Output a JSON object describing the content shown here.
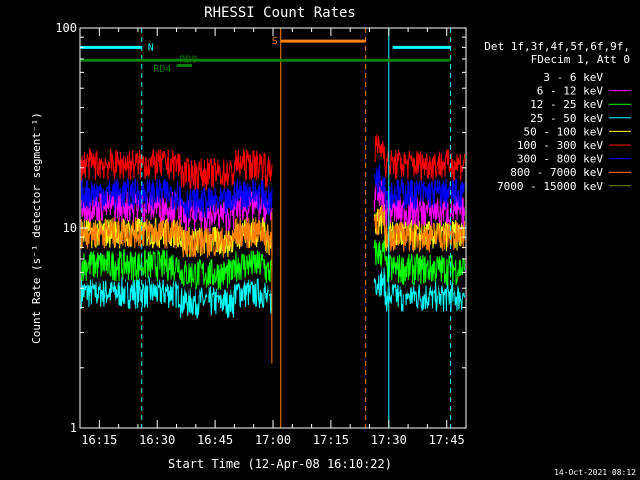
{
  "chart_data": {
    "type": "line",
    "title": "RHESSI Count Rates",
    "xlabel": "Start Time (12-Apr-08 16:10:22)",
    "ylabel": "Count Rate (s⁻¹ detector segment⁻¹)",
    "yscale": "log",
    "ylim": [
      1,
      100
    ],
    "xlim_min": [
      970,
      1070
    ],
    "x_unit": "minutes after 00:00",
    "x_ticks": [
      "16:15",
      "16:30",
      "16:45",
      "17:00",
      "17:15",
      "17:30",
      "17:45"
    ],
    "y_ticks": [
      "1",
      "10",
      "100"
    ],
    "legend_header": [
      "Det 1f,3f,4f,5f,6f,9f,",
      "FDecim 1, Att 0"
    ],
    "legend_position": "right",
    "timestamp": "14-Oct-2021 08:12",
    "data_gap": {
      "start": "17:00",
      "end": "17:26"
    },
    "series": [
      {
        "name": "3 - 6 keV",
        "color": "#000000",
        "pre_level": 6.2,
        "post_level": 5.6
      },
      {
        "name": "6 - 12 keV",
        "color": "#ff00ff",
        "pre_level": 13.0,
        "post_level": 12.2
      },
      {
        "name": "12 - 25 keV",
        "color": "#00ff00",
        "pre_level": 6.6,
        "post_level": 6.3
      },
      {
        "name": "25 - 50 keV",
        "color": "#00ffff",
        "pre_level": 4.8,
        "post_level": 4.6
      },
      {
        "name": "50 - 100 keV",
        "color": "#ffff00",
        "pre_level": 9.6,
        "post_level": 9.3
      },
      {
        "name": "100 - 300 keV",
        "color": "#ff0000",
        "pre_level": 21.0,
        "post_level": 21.0
      },
      {
        "name": "300 - 800 keV",
        "color": "#0000ff",
        "pre_level": 15.0,
        "post_level": 15.0
      },
      {
        "name": "800 - 7000 keV",
        "color": "#ff8000",
        "pre_level": 9.6,
        "post_level": 9.2
      },
      {
        "name": "7000 - 15000 keV",
        "color": "#808000",
        "pre_level": 69,
        "post_level": 69
      }
    ],
    "bars": [
      {
        "label": "N",
        "color": "#00ffff",
        "level": 80,
        "segments": [
          [
            "16:10",
            "16:26"
          ],
          [
            "17:31",
            "17:46"
          ]
        ]
      },
      {
        "label": "S",
        "color": "#ff8000",
        "level": 86,
        "segments": [
          [
            "17:02",
            "17:24"
          ]
        ]
      },
      {
        "label": "RD4",
        "color": "#008000",
        "level": 69,
        "segments": [
          [
            "16:10",
            "17:46"
          ]
        ]
      },
      {
        "label": "RD0",
        "color": "#008000",
        "level": 65,
        "segments": [
          [
            "16:35",
            "16:39"
          ]
        ]
      }
    ],
    "markers": [
      {
        "color": "#00ffff",
        "style": "solid",
        "time": "16:10"
      },
      {
        "color": "#00ffff",
        "style": "dashed",
        "time": "16:26"
      },
      {
        "color": "#ff8000",
        "style": "solid",
        "time": "17:02"
      },
      {
        "color": "#ff8000",
        "style": "dashed",
        "time": "17:24"
      },
      {
        "color": "#00ffff",
        "style": "solid",
        "time": "17:30"
      },
      {
        "color": "#00ffff",
        "style": "dashed",
        "time": "17:46"
      }
    ]
  }
}
